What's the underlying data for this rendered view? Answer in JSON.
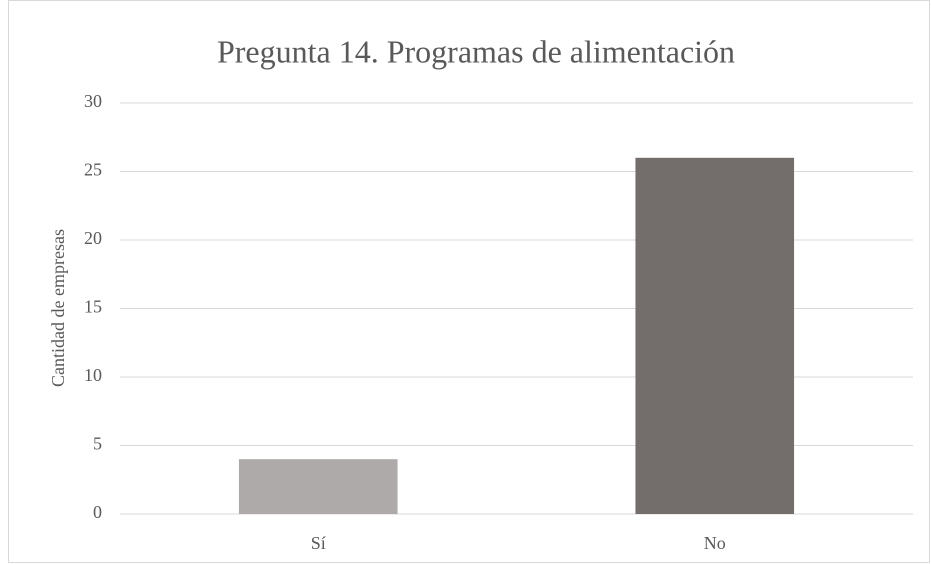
{
  "chart_data": {
    "type": "bar",
    "title": "Pregunta 14. Programas de alimentación",
    "y_label": "Cantidad de empresas",
    "categories": [
      "Sí",
      "No"
    ],
    "values": [
      4,
      26
    ],
    "colors": [
      "#aeaaa9",
      "#736e6c"
    ],
    "ylim": [
      0,
      30
    ],
    "yticks": [
      0,
      5,
      10,
      15,
      20,
      25,
      30
    ],
    "grid": true
  }
}
